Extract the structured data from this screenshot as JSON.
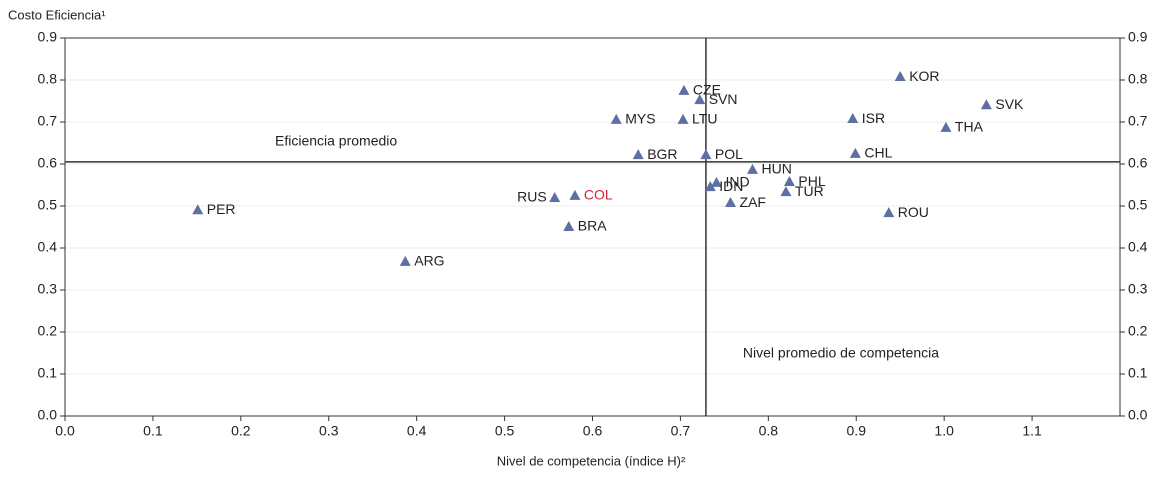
{
  "chart_data": {
    "type": "scatter",
    "y_axis_label": "Costo Eficiencia¹",
    "x_axis_label": "Nivel de competencia (índice H)²",
    "x": [
      0.95,
      1.048,
      0.896,
      1.002,
      0.899,
      0.937,
      0.704,
      0.722,
      0.703,
      0.627,
      0.652,
      0.729,
      0.782,
      0.741,
      0.734,
      0.824,
      0.82,
      0.757,
      0.557,
      0.58,
      0.573,
      0.151,
      0.387
    ],
    "values": [
      0.807,
      0.74,
      0.707,
      0.686,
      0.624,
      0.483,
      0.774,
      0.752,
      0.705,
      0.705,
      0.621,
      0.621,
      0.586,
      0.555,
      0.545,
      0.557,
      0.533,
      0.507,
      0.519,
      0.524,
      0.45,
      0.49,
      0.367
    ],
    "labels": [
      "KOR",
      "SVK",
      "ISR",
      "THA",
      "CHL",
      "ROU",
      "CZE",
      "SVN",
      "LTU",
      "MYS",
      "BGR",
      "POL",
      "HUN",
      "IND",
      "IDN",
      "PHL",
      "TUR",
      "ZAF",
      "RUS",
      "COL",
      "BRA",
      "PER",
      "ARG"
    ],
    "label_colors": [
      "#222",
      "#222",
      "#222",
      "#222",
      "#222",
      "#222",
      "#222",
      "#222",
      "#222",
      "#222",
      "#222",
      "#222",
      "#222",
      "#222",
      "#222",
      "#222",
      "#222",
      "#222",
      "#222",
      "#d6243a",
      "#222",
      "#222",
      "#222"
    ],
    "color": "#5d6fa3",
    "xlim": [
      0,
      1.2
    ],
    "ylim": [
      0,
      0.9
    ],
    "xticks": [
      {
        "value": 0,
        "label": "0.0"
      },
      0.1,
      0.2,
      0.3,
      0.4,
      0.5,
      0.6,
      0.7,
      0.8,
      0.9,
      {
        "value": 1,
        "label": "1.0"
      },
      1.1
    ],
    "yticks": [
      {
        "value": 0,
        "label": "0.0"
      },
      0.1,
      0.2,
      0.3,
      0.4,
      0.5,
      0.6,
      0.7,
      0.8,
      0.9
    ],
    "x_reference": 0.729,
    "x_reference_label": "Nivel promedio de competencia",
    "y_reference": 0.605,
    "y_reference_label": "Eficiencia promedio",
    "grid": true
  }
}
